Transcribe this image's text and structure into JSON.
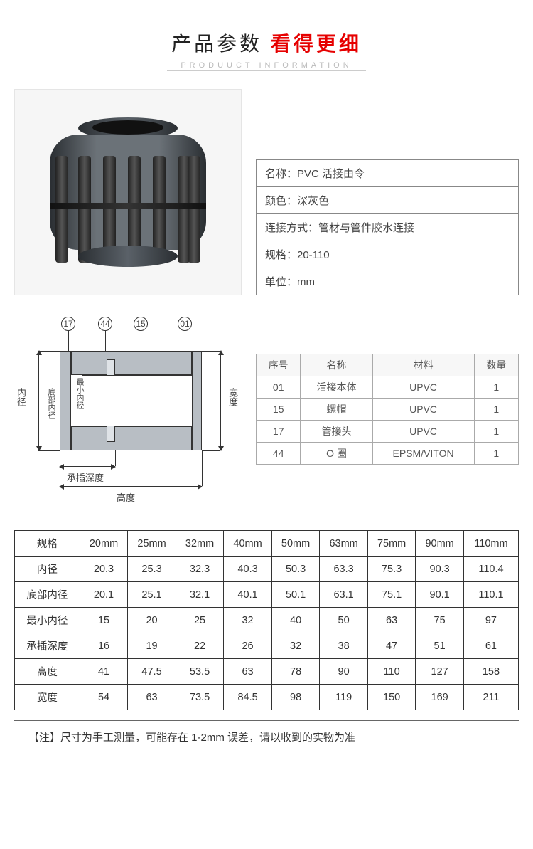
{
  "header": {
    "title_part1": "产品参数",
    "title_part2": "看得更细",
    "subtitle": "PRODUUCT  INFORMATION"
  },
  "info_table": {
    "rows": [
      {
        "label": "名称：",
        "value": "PVC 活接由令"
      },
      {
        "label": "颜色：",
        "value": "深灰色"
      },
      {
        "label": "连接方式：",
        "value": "管材与管件胶水连接"
      },
      {
        "label": "规格：",
        "value": "20-110"
      },
      {
        "label": "单位：",
        "value": "mm"
      }
    ]
  },
  "diagram": {
    "callouts": [
      "17",
      "44",
      "15",
      "01"
    ],
    "labels": {
      "inner_diameter": "内径",
      "bottom_inner": "底部内径",
      "min_inner": "最小内径",
      "width": "宽度",
      "socket_depth": "承插深度",
      "height": "高度"
    }
  },
  "bom_table": {
    "headers": [
      "序号",
      "名称",
      "材料",
      "数量"
    ],
    "rows": [
      [
        "01",
        "活接本体",
        "UPVC",
        "1"
      ],
      [
        "15",
        "螺帽",
        "UPVC",
        "1"
      ],
      [
        "17",
        "管接头",
        "UPVC",
        "1"
      ],
      [
        "44",
        "O 圈",
        "EPSM/VITON",
        "1"
      ]
    ]
  },
  "spec_table": {
    "headers": [
      "规格",
      "20mm",
      "25mm",
      "32mm",
      "40mm",
      "50mm",
      "63mm",
      "75mm",
      "90mm",
      "110mm"
    ],
    "rows": [
      [
        "内径",
        "20.3",
        "25.3",
        "32.3",
        "40.3",
        "50.3",
        "63.3",
        "75.3",
        "90.3",
        "110.4"
      ],
      [
        "底部内径",
        "20.1",
        "25.1",
        "32.1",
        "40.1",
        "50.1",
        "63.1",
        "75.1",
        "90.1",
        "110.1"
      ],
      [
        "最小内径",
        "15",
        "20",
        "25",
        "32",
        "40",
        "50",
        "63",
        "75",
        "97"
      ],
      [
        "承插深度",
        "16",
        "19",
        "22",
        "26",
        "32",
        "38",
        "47",
        "51",
        "61"
      ],
      [
        "高度",
        "41",
        "47.5",
        "53.5",
        "63",
        "78",
        "90",
        "110",
        "127",
        "158"
      ],
      [
        "宽度",
        "54",
        "63",
        "73.5",
        "84.5",
        "98",
        "119",
        "150",
        "169",
        "211"
      ]
    ]
  },
  "note": "【注】尺寸为手工测量，可能存在 1-2mm 误差，请以收到的实物为准",
  "colors": {
    "accent_red": "#e60000",
    "text_dark": "#222222",
    "border_gray": "#888888",
    "border_dark": "#333333",
    "section_fill": "#b8bec4"
  }
}
